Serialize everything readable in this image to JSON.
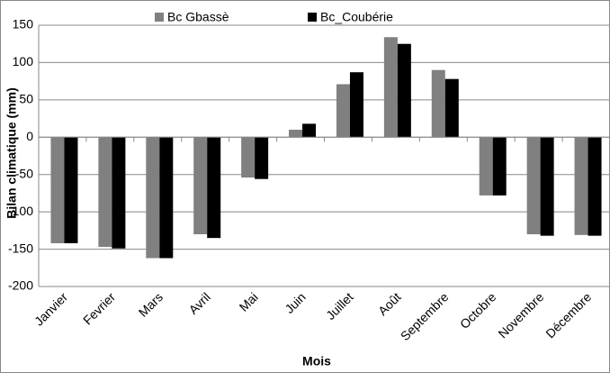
{
  "chart_data": {
    "type": "bar",
    "categories": [
      "Janvier",
      "Fevrier",
      "Mars",
      "Avril",
      "Mai",
      "Juin",
      "Juillet",
      "Août",
      "Septembre",
      "Octobre",
      "Novembre",
      "Décembre"
    ],
    "series": [
      {
        "name": "Bc Gbassè",
        "color": "#808080",
        "values": [
          -142,
          -147,
          -162,
          -130,
          -54,
          10,
          71,
          134,
          90,
          -78,
          -130,
          -131
        ]
      },
      {
        "name": "Bc_Coubérie",
        "color": "#000000",
        "values": [
          -142,
          -149,
          -162,
          -135,
          -56,
          18,
          87,
          125,
          78,
          -78,
          -132,
          -132
        ]
      }
    ],
    "ylim": [
      -200,
      150
    ],
    "yticks": [
      -200,
      -150,
      -100,
      -50,
      0,
      50,
      100,
      150
    ],
    "xlabel": "Mois",
    "ylabel": "Bilan climatique (mm)",
    "grid": true,
    "legend": "top"
  }
}
